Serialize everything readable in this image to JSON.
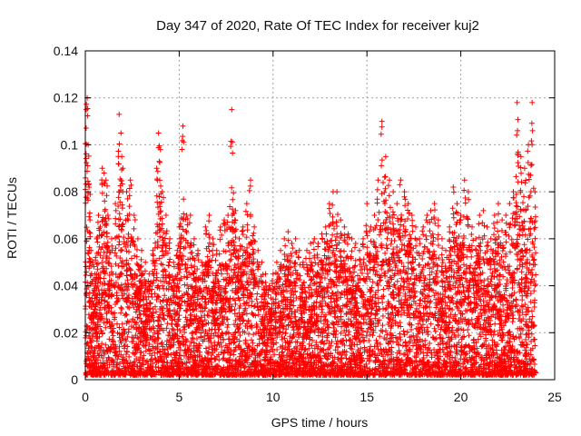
{
  "chart_data": {
    "type": "scatter",
    "title": "Day 347 of 2020, Rate Of TEC Index for receiver kuj2",
    "xlabel": "GPS time / hours",
    "ylabel": "ROTI / TECUs",
    "xlim": [
      0,
      25
    ],
    "ylim": [
      0,
      0.14
    ],
    "x_ticks": [
      0,
      5,
      10,
      15,
      20,
      25
    ],
    "x_tick_labels": [
      "0",
      "5",
      "10",
      "15",
      "20",
      "25"
    ],
    "y_ticks": [
      0,
      0.02,
      0.04,
      0.06,
      0.08,
      0.1,
      0.12,
      0.14
    ],
    "y_tick_labels": [
      "0",
      "0.02",
      "0.04",
      "0.06",
      "0.08",
      "0.1",
      "0.12",
      "0.14"
    ],
    "grid": true,
    "marker": "+",
    "color": "#ff0000",
    "series": [
      {
        "name": "ROTI",
        "description_points": "dense scatter of ROTI samples over 0-24 h",
        "x": [
          0.05,
          0.1,
          0.15,
          0.2,
          0.25,
          0.3,
          0.4,
          0.5,
          0.6,
          0.7,
          0.8,
          0.9,
          1.0,
          1.1,
          1.2,
          1.4,
          1.6,
          1.8,
          1.9,
          2.0,
          2.2,
          2.4,
          2.6,
          2.8,
          3.0,
          3.2,
          3.4,
          3.6,
          3.8,
          3.9,
          4.0,
          4.1,
          4.3,
          4.5,
          4.7,
          4.9,
          5.0,
          5.2,
          5.4,
          5.6,
          5.8,
          6.0,
          6.2,
          6.4,
          6.6,
          6.8,
          7.0,
          7.2,
          7.4,
          7.6,
          7.8,
          8.0,
          8.2,
          8.4,
          8.6,
          8.8,
          9.0,
          9.2,
          9.4,
          9.6,
          9.8,
          10.0,
          10.2,
          10.4,
          10.6,
          10.8,
          11.0,
          11.2,
          11.4,
          11.6,
          11.8,
          12.0,
          12.2,
          12.4,
          12.6,
          12.8,
          13.0,
          13.2,
          13.4,
          13.6,
          13.8,
          14.0,
          14.2,
          14.4,
          14.6,
          14.8,
          15.0,
          15.2,
          15.4,
          15.6,
          15.8,
          16.0,
          16.2,
          16.4,
          16.6,
          16.8,
          17.0,
          17.2,
          17.4,
          17.6,
          17.8,
          18.0,
          18.2,
          18.4,
          18.6,
          18.8,
          19.0,
          19.2,
          19.4,
          19.6,
          19.8,
          20.0,
          20.2,
          20.4,
          20.6,
          20.8,
          21.0,
          21.2,
          21.4,
          21.6,
          21.8,
          22.0,
          22.2,
          22.4,
          22.6,
          22.8,
          23.0,
          23.2,
          23.4,
          23.6,
          23.8,
          23.95
        ],
        "y": [
          0.115,
          0.12,
          0.1,
          0.082,
          0.068,
          0.055,
          0.05,
          0.045,
          0.06,
          0.07,
          0.065,
          0.09,
          0.088,
          0.085,
          0.07,
          0.06,
          0.075,
          0.113,
          0.105,
          0.09,
          0.08,
          0.085,
          0.07,
          0.06,
          0.055,
          0.05,
          0.045,
          0.055,
          0.09,
          0.105,
          0.098,
          0.08,
          0.07,
          0.06,
          0.05,
          0.055,
          0.065,
          0.108,
          0.07,
          0.07,
          0.06,
          0.055,
          0.05,
          0.065,
          0.07,
          0.06,
          0.055,
          0.065,
          0.068,
          0.07,
          0.115,
          0.072,
          0.06,
          0.065,
          0.075,
          0.085,
          0.065,
          0.055,
          0.05,
          0.045,
          0.04,
          0.045,
          0.05,
          0.055,
          0.06,
          0.063,
          0.058,
          0.06,
          0.055,
          0.05,
          0.055,
          0.058,
          0.06,
          0.058,
          0.062,
          0.065,
          0.075,
          0.08,
          0.08,
          0.068,
          0.065,
          0.062,
          0.06,
          0.058,
          0.055,
          0.06,
          0.075,
          0.065,
          0.07,
          0.085,
          0.11,
          0.095,
          0.085,
          0.08,
          0.075,
          0.085,
          0.08,
          0.075,
          0.07,
          0.065,
          0.06,
          0.065,
          0.07,
          0.072,
          0.075,
          0.068,
          0.06,
          0.055,
          0.065,
          0.082,
          0.075,
          0.07,
          0.085,
          0.08,
          0.065,
          0.06,
          0.07,
          0.072,
          0.065,
          0.06,
          0.07,
          0.075,
          0.068,
          0.07,
          0.075,
          0.08,
          0.118,
          0.095,
          0.09,
          0.1,
          0.118,
          0.08
        ]
      }
    ]
  }
}
